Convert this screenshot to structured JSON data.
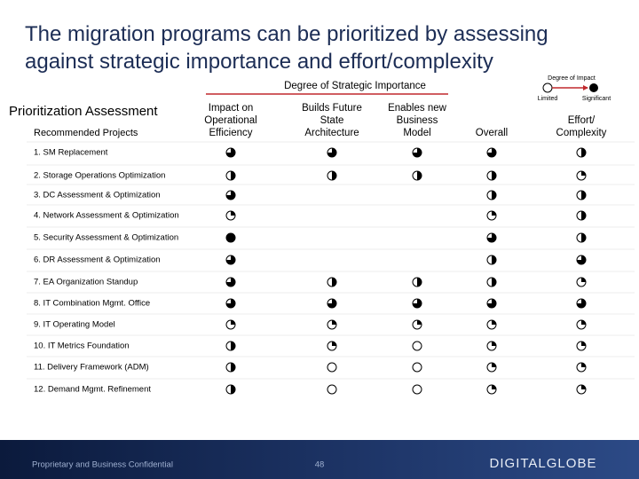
{
  "title": [
    "The migration programs can be prioritized by assessing",
    "against strategic importance and effort/complexity"
  ],
  "legend": {
    "title": "Degree of Impact",
    "low": "Limited",
    "high": "Significant"
  },
  "table": {
    "group_header": "Degree of Strategic Importance",
    "heading": "Prioritization Assessment",
    "row_header": "Recommended Projects",
    "columns": [
      [
        "Impact on",
        "Operational",
        "Efficiency"
      ],
      [
        "Builds Future",
        "State",
        "Architecture"
      ],
      [
        "Enables new",
        "Business",
        "Model"
      ],
      [
        "Overall"
      ],
      [
        "Effort/",
        "Complexity"
      ]
    ],
    "rows": [
      {
        "label": "1. SM Replacement",
        "ratings": [
          3,
          3,
          3,
          3,
          2
        ]
      },
      {
        "label": "2. Storage Operations Optimization",
        "ratings": [
          2,
          2,
          2,
          2,
          1
        ]
      },
      {
        "label": "3. DC Assessment & Optimization",
        "ratings": [
          3,
          null,
          null,
          2,
          2
        ]
      },
      {
        "label": "4. Network Assessment & Optimization",
        "ratings": [
          1,
          null,
          null,
          1,
          2
        ]
      },
      {
        "label": "5. Security Assessment & Optimization",
        "ratings": [
          4,
          null,
          null,
          3,
          2
        ]
      },
      {
        "label": "6. DR Assessment & Optimization",
        "ratings": [
          3,
          null,
          null,
          2,
          3
        ]
      },
      {
        "label": "7. EA Organization Standup",
        "ratings": [
          3,
          2,
          2,
          2,
          1
        ]
      },
      {
        "label": "8. IT Combination Mgmt. Office",
        "ratings": [
          3,
          3,
          3,
          3,
          3
        ]
      },
      {
        "label": "9. IT Operating Model",
        "ratings": [
          1,
          1,
          1,
          1,
          1
        ]
      },
      {
        "label": "10. IT Metrics Foundation",
        "ratings": [
          2,
          1,
          0,
          1,
          1
        ]
      },
      {
        "label": "11. Delivery Framework (ADM)",
        "ratings": [
          2,
          0,
          0,
          1,
          1
        ]
      },
      {
        "label": "12. Demand Mgmt. Refinement",
        "ratings": [
          2,
          0,
          0,
          1,
          1
        ]
      }
    ]
  },
  "footer": {
    "confidential": "Proprietary and Business Confidential",
    "page": 48,
    "logo": "DIGITALGLOBE"
  }
}
